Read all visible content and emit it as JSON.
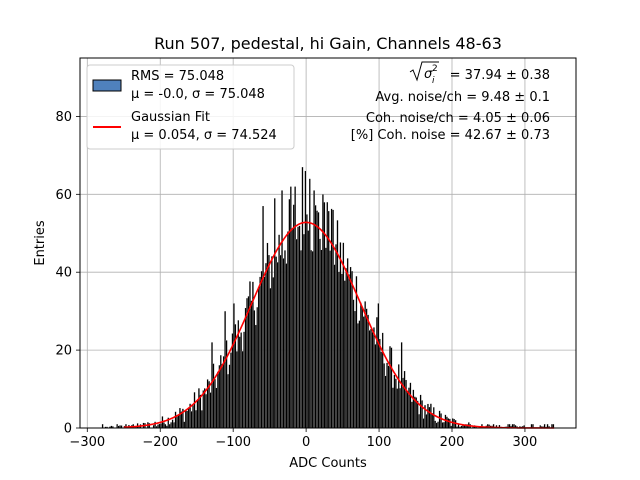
{
  "chart_data": {
    "type": "bar",
    "title": "Run 507, pedestal, hi Gain, Channels 48-63",
    "xlabel": "ADC Counts",
    "ylabel": "Entries",
    "xlim": [
      -310,
      370
    ],
    "ylim": [
      0,
      95
    ],
    "xticks": [
      -300,
      -200,
      -100,
      0,
      100,
      200,
      300
    ],
    "yticks": [
      0,
      20,
      40,
      60,
      80
    ],
    "xtick_labels": [
      "−300",
      "−200",
      "−100",
      "0",
      "100",
      "200",
      "300"
    ],
    "ytick_labels": [
      "0",
      "20",
      "40",
      "60",
      "80"
    ],
    "grid": true,
    "legend_position": "top-left",
    "histogram": {
      "label_line1": "RMS = 75.048",
      "label_line2": "μ = -0.0, σ = 75.048",
      "color": "#000000",
      "legend_color": "#4f81bd",
      "bin_width": 2,
      "range": [
        -280,
        340
      ],
      "rms": 75.048,
      "mu": -0.0,
      "sigma": 75.048
    },
    "gaussian_fit": {
      "label_line1": "Gaussian Fit",
      "label_line2": "μ = 0.054, σ = 74.524",
      "color": "#ff0000",
      "mu": 0.054,
      "sigma": 74.524,
      "amplitude": 52.8,
      "x_range": [
        -250,
        340
      ]
    },
    "annotations": {
      "sigma_value": "= 37.94 ± 0.38",
      "avg_noise": "Avg. noise/ch = 9.48 ± 0.1",
      "coh_noise": "Coh. noise/ch = 4.05 ± 0.06",
      "coh_percent": "[%] Coh. noise = 42.67 ± 0.73"
    },
    "tall_bars": [
      {
        "x": -34,
        "y": 61
      },
      {
        "x": -22,
        "y": 62
      },
      {
        "x": -6,
        "y": 67
      },
      {
        "x": -2,
        "y": 66
      },
      {
        "x": 4,
        "y": 64
      },
      {
        "x": 10,
        "y": 61
      },
      {
        "x": -16,
        "y": 62
      },
      {
        "x": 22,
        "y": 60
      },
      {
        "x": -60,
        "y": 57
      },
      {
        "x": 36,
        "y": 56
      },
      {
        "x": -44,
        "y": 59
      },
      {
        "x": 28,
        "y": 58
      },
      {
        "x": -100,
        "y": 32
      },
      {
        "x": -112,
        "y": 30
      },
      {
        "x": 98,
        "y": 32
      },
      {
        "x": 130,
        "y": 22
      },
      {
        "x": -130,
        "y": 22
      }
    ]
  }
}
